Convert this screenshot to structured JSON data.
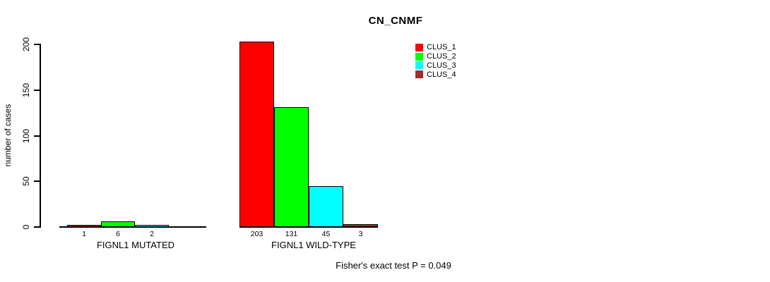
{
  "chart_data": {
    "type": "bar",
    "title": "CN_CNMF",
    "xlabel": "",
    "ylabel": "number of cases",
    "ylim": [
      0,
      200
    ],
    "yticks": [
      0,
      50,
      100,
      150,
      200
    ],
    "categories": [
      "FIGNL1 MUTATED",
      "FIGNL1 WILD-TYPE"
    ],
    "series": [
      {
        "name": "CLUS_1",
        "color": "#ff0000",
        "values": [
          1,
          203
        ]
      },
      {
        "name": "CLUS_2",
        "color": "#00ff00",
        "values": [
          6,
          131
        ]
      },
      {
        "name": "CLUS_3",
        "color": "#00ffff",
        "values": [
          2,
          45
        ]
      },
      {
        "name": "CLUS_4",
        "color": "#a52a2a",
        "values": [
          0,
          3
        ]
      }
    ],
    "bar_value_labels": [
      [
        "1",
        "6",
        "2",
        ""
      ],
      [
        "203",
        "131",
        "45",
        "3"
      ]
    ],
    "legend_position": "top-right",
    "grid": false,
    "annotation": "Fisher's exact test P = 0.049"
  }
}
